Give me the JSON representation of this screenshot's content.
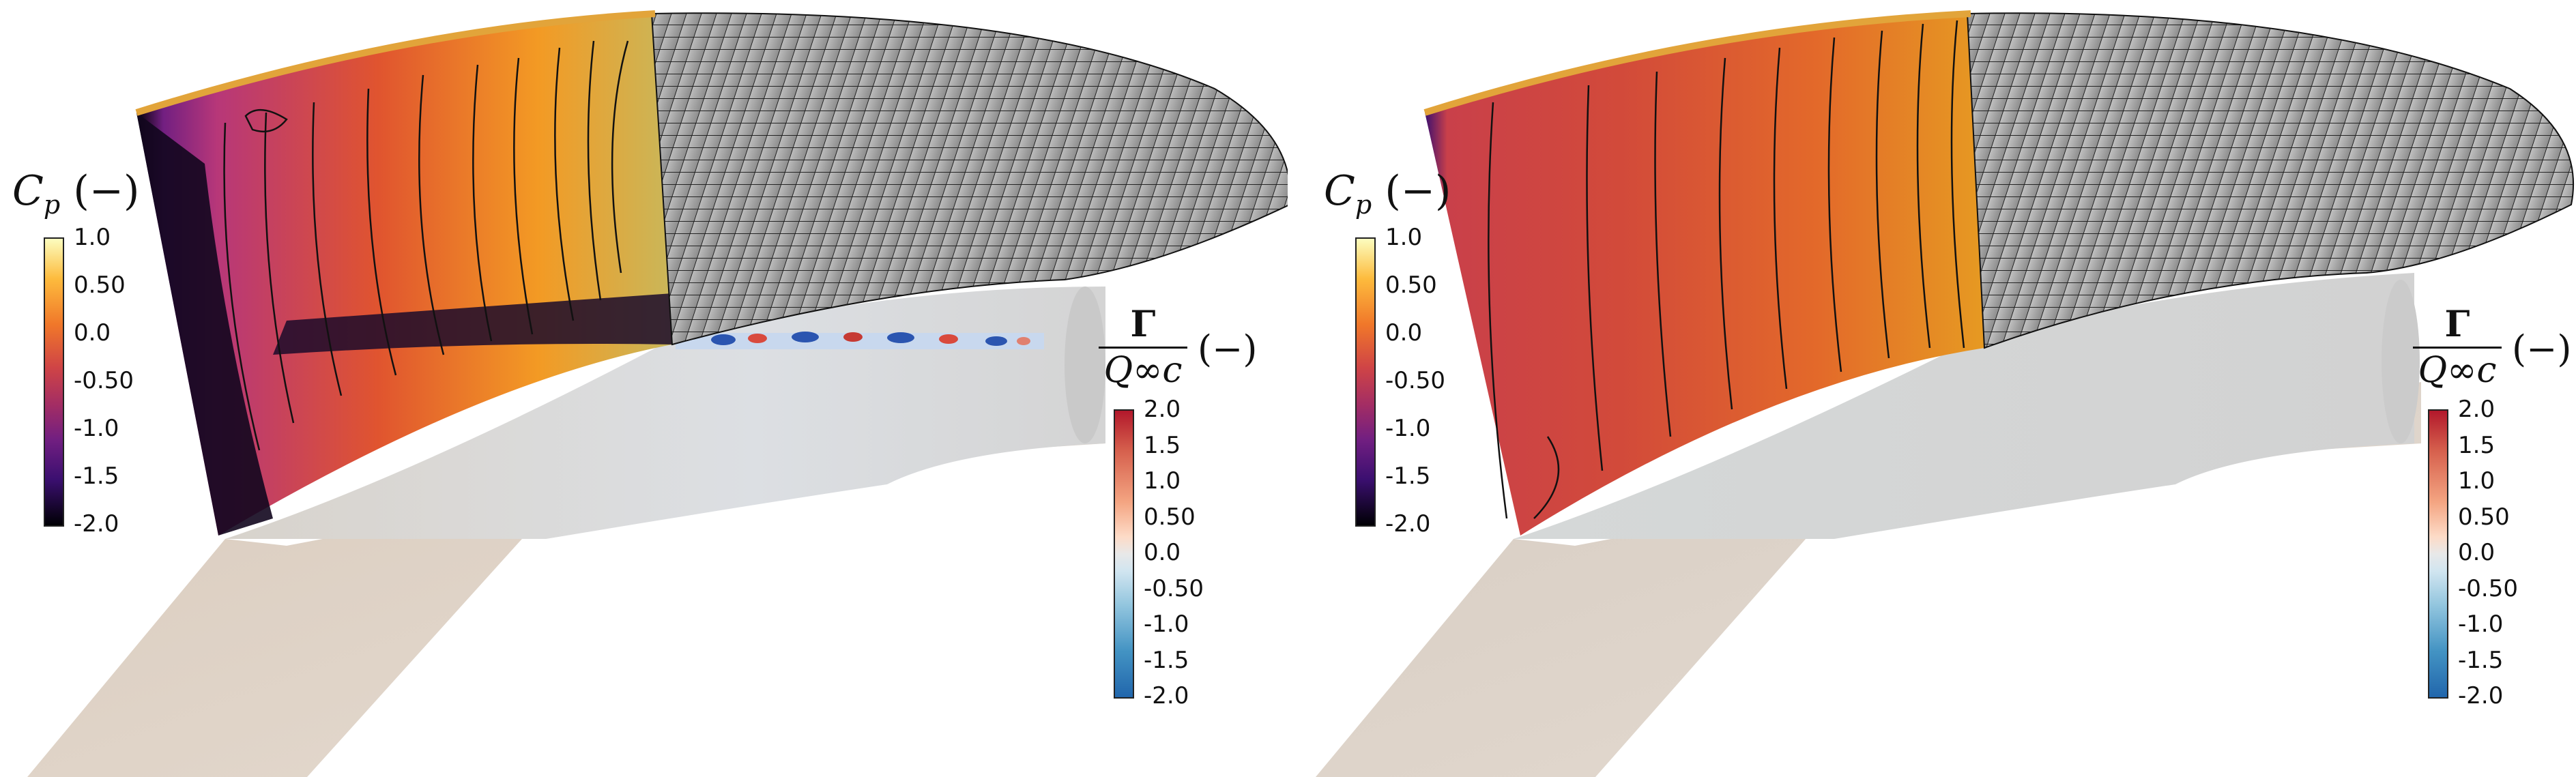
{
  "panels": [
    {
      "id": "left",
      "cp_colorbar": {
        "title_symbol": "C",
        "title_sub": "p",
        "title_unit": " (−)",
        "ticks": [
          "1.0",
          "0.50",
          "0.0",
          "-0.50",
          "-1.0",
          "-1.5",
          "-2.0"
        ]
      },
      "gamma_colorbar": {
        "numerator": "Γ",
        "denominator": "Q∞c",
        "unit": "(−)",
        "ticks": [
          "2.0",
          "1.5",
          "1.0",
          "0.50",
          "0.0",
          "-0.50",
          "-1.0",
          "-1.5",
          "-2.0"
        ]
      }
    },
    {
      "id": "right",
      "cp_colorbar": {
        "title_symbol": "C",
        "title_sub": "p",
        "title_unit": " (−)",
        "ticks": [
          "1.0",
          "0.50",
          "0.0",
          "-0.50",
          "-1.0",
          "-1.5",
          "-2.0"
        ]
      },
      "gamma_colorbar": {
        "numerator": "Γ",
        "denominator": "Q∞c",
        "unit": "(−)",
        "ticks": [
          "2.0",
          "1.5",
          "1.0",
          "0.50",
          "0.0",
          "-0.50",
          "-1.0",
          "-1.5",
          "-2.0"
        ]
      }
    }
  ],
  "colors": {
    "cp_scale": [
      "#fcfdbf",
      "#fdbb3d",
      "#f0772a",
      "#cf4446",
      "#a32d64",
      "#721f81",
      "#3b0f70",
      "#000004"
    ],
    "gamma_scale": [
      "#b2182b",
      "#d6604d",
      "#f4a582",
      "#fddbc7",
      "#e8e8e8",
      "#d1e5f0",
      "#92c5de",
      "#4393c3",
      "#2166ac"
    ],
    "mesh_fill": "#c8c8c8",
    "mesh_line": "#222222",
    "wing_fill": "#ddd2c6",
    "wake_fill": "#dcdcdc"
  }
}
